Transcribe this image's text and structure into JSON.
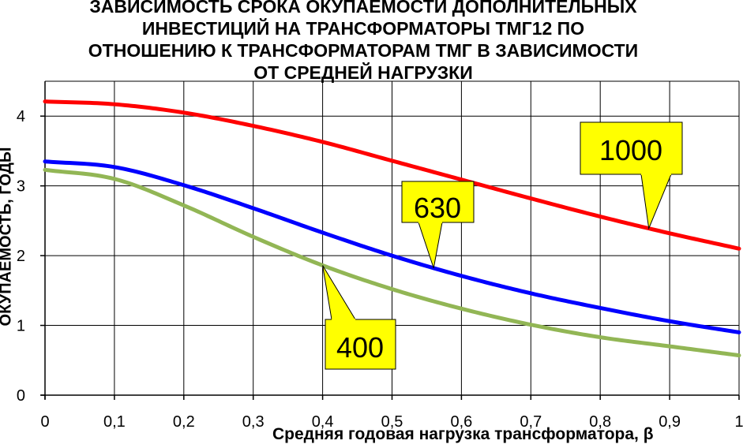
{
  "chart_data": {
    "type": "line",
    "title_lines": [
      "ЗАВИСИМОСТЬ СРОКА ОКУПАЕМОСТИ ДОПОЛНИТЕЛЬНЫХ",
      "ИНВЕСТИЦИЙ НА ТРАНСФОРМАТОРЫ ТМГ12 ПО",
      "ОТНОШЕНИЮ К ТРАНСФОРМАТОРАМ ТМГ В ЗАВИСИМОСТИ",
      "ОТ СРЕДНЕЙ НАГРУЗКИ"
    ],
    "xlabel": "Средняя годовая нагрузка трансформатора,  β",
    "ylabel": "ОКУПАЕМОСТЬ, ГОДЫ",
    "xlim": [
      0,
      1
    ],
    "ylim": [
      0,
      4.5
    ],
    "x_ticks": [
      0,
      0.1,
      0.2,
      0.3,
      0.4,
      0.5,
      0.6,
      0.7,
      0.8,
      0.9,
      1
    ],
    "x_tick_labels": [
      "0",
      "0,1",
      "0,2",
      "0,3",
      "0,4",
      "0,5",
      "0,6",
      "0,7",
      "0,8",
      "0,9",
      "1"
    ],
    "y_ticks": [
      0,
      1,
      2,
      3,
      4
    ],
    "y_tick_labels": [
      "0",
      "1",
      "2",
      "3",
      "4"
    ],
    "grid": true,
    "x": [
      0,
      0.1,
      0.2,
      0.3,
      0.4,
      0.5,
      0.6,
      0.7,
      0.8,
      0.9,
      1
    ],
    "series": [
      {
        "name": "1000",
        "color": "#ff0000",
        "values": [
          4.21,
          4.17,
          4.05,
          3.86,
          3.63,
          3.36,
          3.09,
          2.82,
          2.56,
          2.32,
          2.1
        ]
      },
      {
        "name": "630",
        "color": "#0000ff",
        "values": [
          3.35,
          3.27,
          3.01,
          2.68,
          2.33,
          2.0,
          1.71,
          1.46,
          1.25,
          1.06,
          0.9
        ]
      },
      {
        "name": "400",
        "color": "#92b655",
        "values": [
          3.23,
          3.1,
          2.72,
          2.27,
          1.86,
          1.52,
          1.24,
          1.01,
          0.83,
          0.7,
          0.57
        ]
      }
    ],
    "callouts": [
      {
        "text": "1000",
        "series": "1000",
        "x": 0.87
      },
      {
        "text": "630",
        "series": "630",
        "x": 0.56
      },
      {
        "text": "400",
        "series": "400",
        "x": 0.4
      }
    ]
  }
}
